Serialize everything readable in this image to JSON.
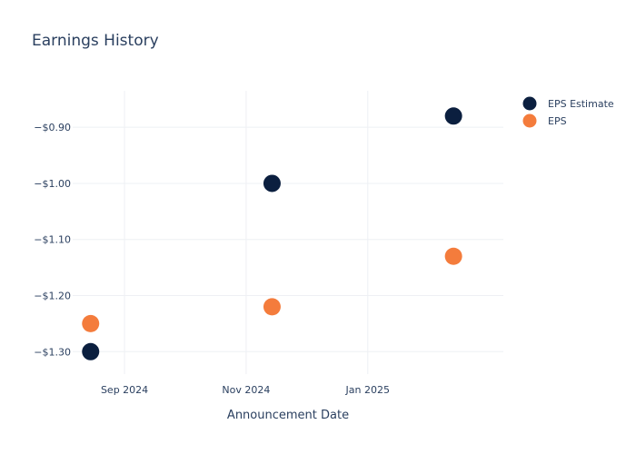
{
  "chart_data": {
    "type": "scatter",
    "title": "Earnings History",
    "xlabel": "Announcement Date",
    "ylabel": "",
    "x_ticks": [
      {
        "date": "2024-09-01",
        "label": "Sep 2024"
      },
      {
        "date": "2024-11-01",
        "label": "Nov 2024"
      },
      {
        "date": "2025-01-01",
        "label": "Jan 2025"
      }
    ],
    "y_ticks": [
      {
        "value": -0.9,
        "label": "−$0.90"
      },
      {
        "value": -1.0,
        "label": "−$1.00"
      },
      {
        "value": -1.1,
        "label": "−$1.10"
      },
      {
        "value": -1.2,
        "label": "−$1.20"
      },
      {
        "value": -1.3,
        "label": "−$1.30"
      }
    ],
    "xlim": [
      "2024-08-06",
      "2025-03-10"
    ],
    "ylim": [
      -1.34,
      -0.835
    ],
    "grid": true,
    "legend_position": "top-right",
    "series": [
      {
        "name": "EPS Estimate",
        "color": "#0b1f3f",
        "points": [
          {
            "x": "2024-08-15",
            "y": -1.3
          },
          {
            "x": "2024-11-14",
            "y": -1.0
          },
          {
            "x": "2025-02-13",
            "y": -0.88
          }
        ]
      },
      {
        "name": "EPS",
        "color": "#f47c3c",
        "points": [
          {
            "x": "2024-08-15",
            "y": -1.25
          },
          {
            "x": "2024-11-14",
            "y": -1.22
          },
          {
            "x": "2025-02-13",
            "y": -1.13
          }
        ]
      }
    ]
  }
}
